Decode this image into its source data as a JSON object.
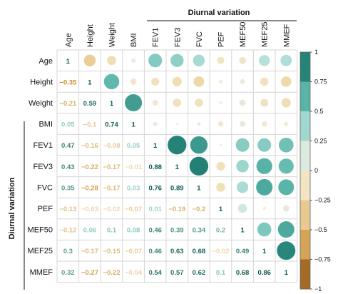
{
  "chart_data": {
    "type": "heatmap",
    "title": "",
    "group_label": "Diurnal variation",
    "variables": [
      "Age",
      "Height",
      "Weight",
      "BMI",
      "FEV1",
      "FEV3",
      "FVC",
      "PEF",
      "MEF50",
      "MEF25",
      "MMEF"
    ],
    "matrix": [
      [
        1,
        -0.35,
        -0.21,
        0.05,
        0.47,
        0.43,
        0.35,
        -0.13,
        -0.12,
        0.3,
        0.32
      ],
      [
        -0.35,
        1,
        0.59,
        -0.1,
        -0.16,
        -0.22,
        -0.28,
        -0.03,
        0.06,
        -0.17,
        -0.27
      ],
      [
        -0.21,
        0.59,
        1,
        0.74,
        -0.08,
        -0.17,
        -0.17,
        -0.02,
        0.1,
        -0.15,
        -0.22
      ],
      [
        0.05,
        -0.1,
        0.74,
        1,
        0.05,
        -0.01,
        0.03,
        -0.07,
        0.08,
        -0.07,
        -0.04
      ],
      [
        0.47,
        -0.16,
        -0.08,
        0.05,
        1,
        0.88,
        0.76,
        0.01,
        0.46,
        0.46,
        0.54
      ],
      [
        0.43,
        -0.22,
        -0.17,
        -0.01,
        0.88,
        1,
        0.89,
        -0.19,
        0.39,
        0.63,
        0.57
      ],
      [
        0.35,
        -0.28,
        -0.17,
        0.03,
        0.76,
        0.89,
        1,
        -0.2,
        0.34,
        0.68,
        0.62
      ],
      [
        -0.13,
        -0.03,
        -0.02,
        -0.07,
        0.01,
        -0.19,
        -0.2,
        1,
        0.2,
        -0.02,
        0.1
      ],
      [
        -0.12,
        0.06,
        0.1,
        0.08,
        0.46,
        0.39,
        0.34,
        0.2,
        1,
        0.49,
        0.68
      ],
      [
        0.3,
        -0.17,
        -0.15,
        -0.07,
        0.46,
        0.63,
        0.68,
        -0.02,
        0.49,
        1,
        0.86
      ],
      [
        0.32,
        -0.27,
        -0.22,
        -0.04,
        0.54,
        0.57,
        0.62,
        0.1,
        0.68,
        0.86,
        1
      ]
    ],
    "lower_labels": [
      [],
      [
        "−0.35"
      ],
      [
        "−0.21",
        "0.59"
      ],
      [
        "0.05",
        "−0.1",
        "0.74"
      ],
      [
        "0.47",
        "−0.16",
        "−0.08",
        "0.05"
      ],
      [
        "0.43",
        "−0.22",
        "−0.17",
        "−0.01",
        "0.88"
      ],
      [
        "0.35",
        "−0.28",
        "−0.17",
        "0.03",
        "0.76",
        "0.89"
      ],
      [
        "−0.13",
        "−0.03",
        "−0.02",
        "−0.07",
        "0.01",
        "−0.19",
        "−0.2"
      ],
      [
        "−0.12",
        "0.06",
        "0.1",
        "0.08",
        "0.46",
        "0.39",
        "0.34",
        "0.2"
      ],
      [
        "0.3",
        "−0.17",
        "−0.15",
        "−0.07",
        "0.46",
        "0.63",
        "0.68",
        "−0.02",
        "0.49"
      ],
      [
        "0.32",
        "−0.27",
        "−0.22",
        "−0.04",
        "0.54",
        "0.57",
        "0.62",
        "0.1",
        "0.68",
        "0.86"
      ]
    ],
    "diagonal_label": "1",
    "colorbar": {
      "ticks": [
        "1",
        "0.75",
        "0.5",
        "0.25",
        "0",
        "−0.25",
        "−0.5",
        "−0.75",
        "−1"
      ],
      "range": [
        -1,
        1
      ]
    },
    "colors": {
      "positive_strong": "#0b6b5f",
      "positive_mid": "#5eb8ac",
      "positive_light": "#c5e8e2",
      "neutral": "#f3ecd9",
      "negative_light": "#f0dcae",
      "negative_mid": "#d9aa5c",
      "negative_strong": "#8a4f0d"
    }
  }
}
